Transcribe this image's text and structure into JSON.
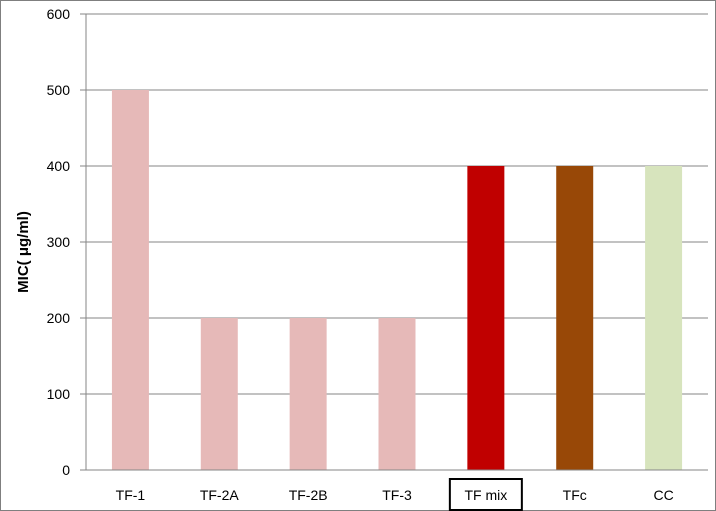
{
  "chart_data": {
    "type": "bar",
    "title": "",
    "xlabel": "",
    "ylabel": "MIC( μg/ml)",
    "ylim": [
      0,
      600
    ],
    "yticks": [
      0,
      100,
      200,
      300,
      400,
      500,
      600
    ],
    "grid": true,
    "legend": "none",
    "categories": [
      "TF-1",
      "TF-2A",
      "TF-2B",
      "TF-3",
      "TF mix",
      "TFc",
      "CC"
    ],
    "values": [
      500,
      200,
      200,
      200,
      400,
      400,
      400
    ],
    "bar_colors": [
      "#e6b9b8",
      "#e6b9b8",
      "#e6b9b8",
      "#e6b9b8",
      "#c00000",
      "#984807",
      "#d7e4bd"
    ],
    "highlighted_category": "TF mix"
  }
}
